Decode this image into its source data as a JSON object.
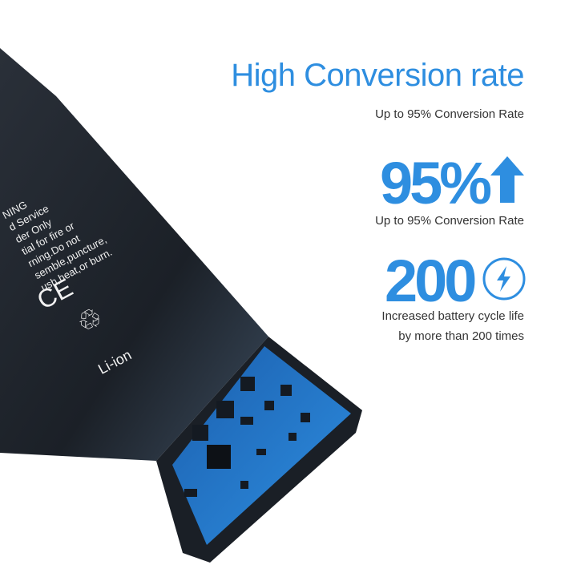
{
  "heading": "High Conversion rate",
  "heading_sub": "Up to 95% Conversion Rate",
  "stat1": {
    "value": "95%",
    "icon": "arrow-up-icon",
    "caption": "Up to 95% Conversion Rate"
  },
  "stat2": {
    "value": "200",
    "icon": "lightning-circle-icon",
    "caption_line1": "Increased battery cycle life",
    "caption_line2": "by more than 200 times"
  },
  "battery_label": {
    "lines": [
      "NING",
      "d Service",
      "der Only",
      "tial for fire or",
      "rning.Do not",
      "semble,puncture,",
      "ush,heat,or burn."
    ],
    "ce_mark": "CE",
    "recycle": "Li-ion"
  },
  "colors": {
    "accent": "#2e8ee0",
    "battery": "#1d232b",
    "board": "#1f6fc4"
  }
}
